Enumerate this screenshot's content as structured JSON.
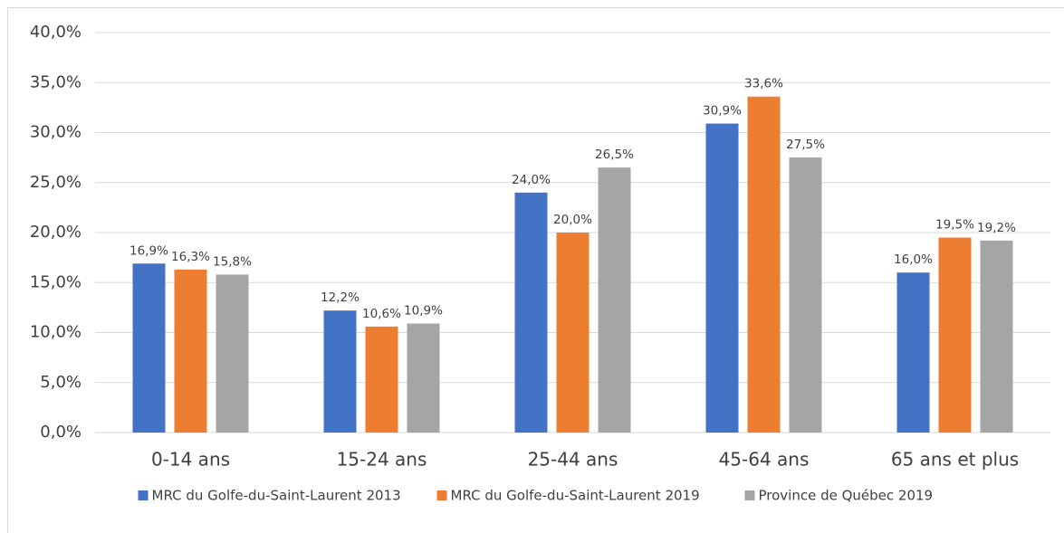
{
  "chart_data": {
    "type": "bar",
    "categories": [
      "0-14 ans",
      "15-24 ans",
      "25-44 ans",
      "45-64 ans",
      "65 ans et plus"
    ],
    "series": [
      {
        "name": "MRC du Golfe-du-Saint-Laurent 2013",
        "color": "#4472c4",
        "values": [
          16.9,
          12.2,
          24.0,
          30.9,
          16.0
        ],
        "value_labels": [
          "16,9%",
          "12,2%",
          "24,0%",
          "30,9%",
          "16,0%"
        ]
      },
      {
        "name": "MRC du Golfe-du-Saint-Laurent 2019",
        "color": "#ed7d31",
        "values": [
          16.3,
          10.6,
          20.0,
          33.6,
          19.5
        ],
        "value_labels": [
          "16,3%",
          "10,6%",
          "20,0%",
          "33,6%",
          "19,5%"
        ]
      },
      {
        "name": "Province de Québec 2019",
        "color": "#a5a5a5",
        "values": [
          15.8,
          10.9,
          26.5,
          27.5,
          19.2
        ],
        "value_labels": [
          "15,8%",
          "10,9%",
          "26,5%",
          "27,5%",
          "19,2%"
        ]
      }
    ],
    "ylim": [
      0,
      40
    ],
    "yticks": [
      {
        "value": 0,
        "label": "0,0%"
      },
      {
        "value": 5,
        "label": "5,0%"
      },
      {
        "value": 10,
        "label": "10,0%"
      },
      {
        "value": 15,
        "label": "15,0%"
      },
      {
        "value": 20,
        "label": "20,0%"
      },
      {
        "value": 25,
        "label": "25,0%"
      },
      {
        "value": 30,
        "label": "30,0%"
      },
      {
        "value": 35,
        "label": "35,0%"
      },
      {
        "value": 40,
        "label": "40,0%"
      }
    ],
    "grid": true,
    "legend": "bottom"
  }
}
